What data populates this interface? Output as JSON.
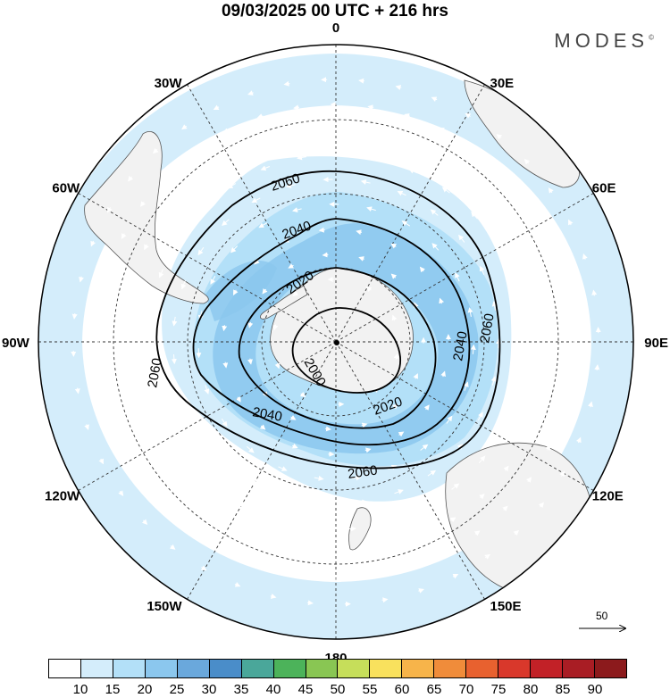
{
  "header": {
    "title": "09/03/2025  00 UTC  + 216 hrs",
    "logo": "MODES",
    "logo_mark": "©"
  },
  "map": {
    "longitude_labels": [
      {
        "text": "0",
        "lon": 0
      },
      {
        "text": "30E",
        "lon": 30
      },
      {
        "text": "60E",
        "lon": 60
      },
      {
        "text": "90E",
        "lon": 90
      },
      {
        "text": "120E",
        "lon": 120
      },
      {
        "text": "150E",
        "lon": 150
      },
      {
        "text": "180",
        "lon": 180
      },
      {
        "text": "150W",
        "lon": 210
      },
      {
        "text": "120W",
        "lon": 240
      },
      {
        "text": "90W",
        "lon": 270
      },
      {
        "text": "60W",
        "lon": 300
      },
      {
        "text": "30W",
        "lon": 330
      }
    ],
    "contour_labels": [
      "2060",
      "2040",
      "2020",
      "2000",
      "2060",
      "2040",
      "2020",
      "2060",
      "2040",
      "2060"
    ],
    "reference_vector": "50"
  },
  "colorbar": {
    "colors": [
      "#ffffff",
      "#d4edfb",
      "#b3e0f8",
      "#8bc7ee",
      "#6aa8dc",
      "#4a8dc9",
      "#4aa79a",
      "#4cb35a",
      "#89c653",
      "#c6de5a",
      "#f9e15d",
      "#f7b44a",
      "#f08c3a",
      "#e8612f",
      "#d9382b",
      "#c22127",
      "#a91d24",
      "#8c1a1c"
    ],
    "labels": [
      "10",
      "15",
      "20",
      "25",
      "30",
      "35",
      "40",
      "45",
      "50",
      "55",
      "60",
      "65",
      "70",
      "75",
      "80",
      "85",
      "90"
    ]
  }
}
